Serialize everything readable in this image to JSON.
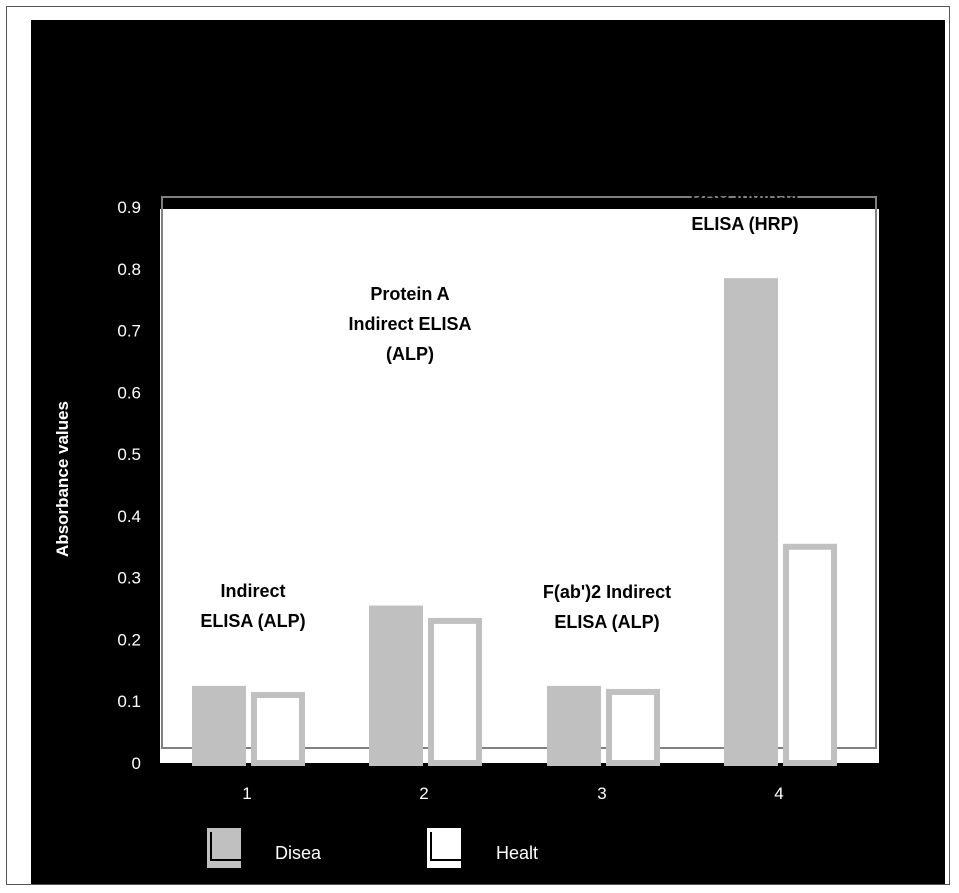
{
  "chart_data": {
    "type": "bar",
    "title": "",
    "xlabel": "",
    "ylabel": "Absorbance values",
    "categories": [
      "1",
      "2",
      "3",
      "4"
    ],
    "ylim": [
      0,
      0.9
    ],
    "yticks": [
      "0",
      "0.1",
      "0.2",
      "0.3",
      "0.4",
      "0.5",
      "0.6",
      "0.7",
      "0.8",
      "0.9"
    ],
    "series": [
      {
        "name": "Disea",
        "values": [
          0.12,
          0.25,
          0.12,
          0.78
        ]
      },
      {
        "name": "Healt",
        "values": [
          0.11,
          0.23,
          0.115,
          0.35
        ]
      }
    ],
    "annotations": [
      {
        "category": "1",
        "lines": [
          "Indirect",
          "ELISA (ALP)"
        ]
      },
      {
        "category": "2",
        "lines": [
          "Protein A",
          "Indirect ELISA",
          "(ALP)"
        ]
      },
      {
        "category": "3",
        "lines": [
          "F(ab')2 Indirect",
          "ELISA (ALP)"
        ]
      },
      {
        "category": "4",
        "lines": [
          "DAC Indirect",
          "ELISA (HRP)"
        ]
      }
    ],
    "grid": false,
    "legend_position": "bottom",
    "colors": {
      "background": "#000000",
      "plot_area": "#ffffff",
      "disease": "#c0c0c0",
      "healthy": "#ffffff",
      "bar_outline": "#c0c0c0",
      "text_light": "#ffffff",
      "text_dark": "#000000"
    }
  }
}
